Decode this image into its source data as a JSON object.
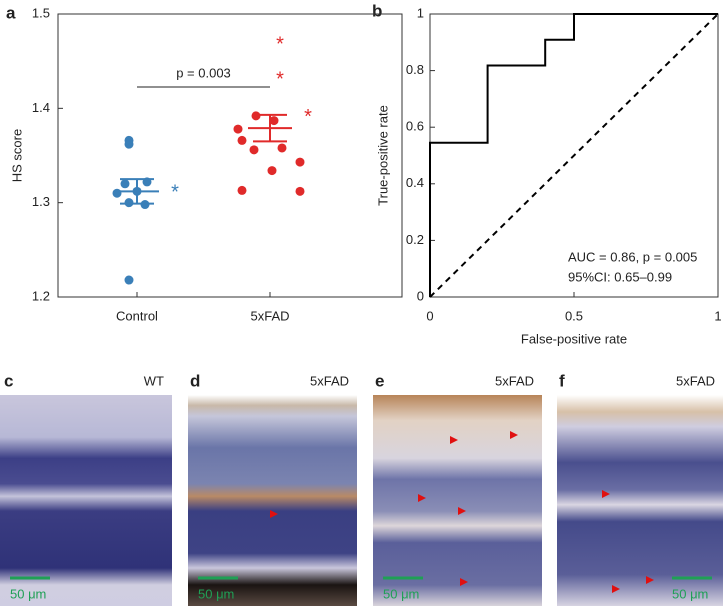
{
  "panel_labels": [
    "a",
    "b",
    "c",
    "d",
    "e",
    "f"
  ],
  "chart_data": [
    {
      "type": "strip",
      "ylabel": "HS score",
      "categories": [
        "Control",
        "5xFAD"
      ],
      "ylim": [
        1.2,
        1.5
      ],
      "yticks": [
        1.2,
        1.3,
        1.4,
        1.5
      ],
      "annotation": "p = 0.003",
      "groups": [
        {
          "color": "#3a7fb8",
          "values": [
            1.366,
            1.362,
            1.322,
            1.32,
            1.312,
            1.31,
            1.3,
            1.298,
            1.218
          ],
          "outliers": [
            1.313
          ],
          "mean": 1.312,
          "sem": 0.013
        },
        {
          "color": "#e02a2a",
          "values": [
            1.392,
            1.387,
            1.378,
            1.366,
            1.358,
            1.356,
            1.343,
            1.334,
            1.313,
            1.312
          ],
          "outliers": [
            1.47,
            1.433,
            1.393
          ],
          "mean": 1.379,
          "sem": 0.014
        }
      ]
    },
    {
      "type": "line",
      "xlabel": "False-positive rate",
      "ylabel": "True-positive rate",
      "xlim": [
        0,
        1
      ],
      "ylim": [
        0,
        1
      ],
      "xticks": [
        0,
        0.5,
        1
      ],
      "yticks": [
        0,
        0.2,
        0.4,
        0.6,
        0.8,
        1
      ],
      "annotations": [
        "AUC = 0.86, p = 0.005",
        "95%CI: 0.65–0.99"
      ],
      "series": [
        {
          "color": "#000000",
          "dash": false,
          "x": [
            0,
            0,
            0.2,
            0.2,
            0.4,
            0.4,
            0.5,
            0.5,
            1
          ],
          "values": [
            0,
            0.545,
            0.545,
            0.818,
            0.818,
            0.909,
            0.909,
            1,
            1
          ]
        },
        {
          "color": "#000000",
          "dash": true,
          "x": [
            0,
            1
          ],
          "values": [
            0,
            1
          ]
        }
      ]
    }
  ],
  "images": [
    {
      "label": "WT",
      "scale_bar": "50 μm"
    },
    {
      "label": "5xFAD",
      "scale_bar": "50 μm"
    },
    {
      "label": "5xFAD",
      "scale_bar": "50 μm"
    },
    {
      "label": "5xFAD",
      "scale_bar": "50 μm"
    }
  ]
}
